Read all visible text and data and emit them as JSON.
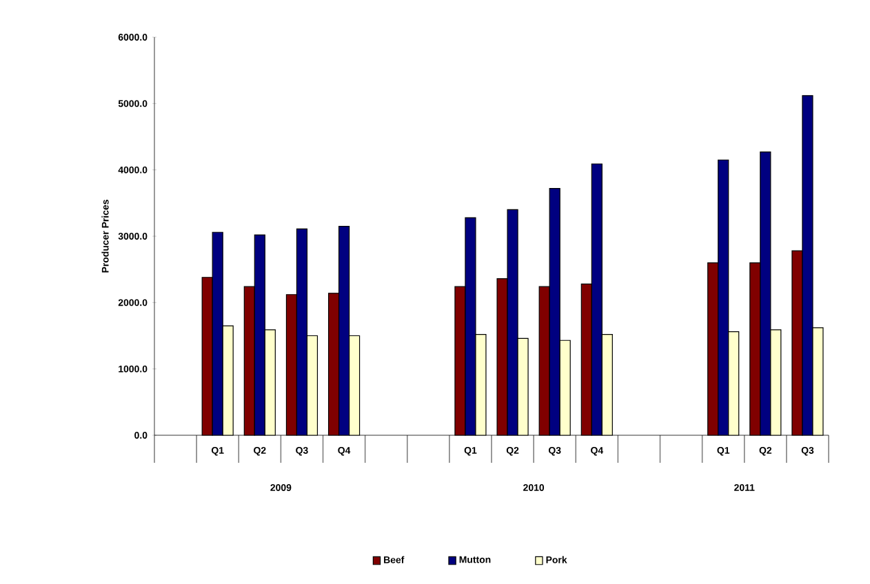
{
  "chart_data": {
    "type": "bar",
    "ylabel": "Producer Prices",
    "categories": [
      null,
      "Q1",
      "Q2",
      "Q3",
      "Q4",
      null,
      null,
      "Q1",
      "Q2",
      "Q3",
      "Q4",
      null,
      null,
      "Q1",
      "Q2",
      "Q3"
    ],
    "series": [
      {
        "name": "Beef",
        "color": "#800000",
        "values": [
          null,
          2380,
          2240,
          2120,
          2140,
          null,
          null,
          2240,
          2360,
          2240,
          2280,
          null,
          null,
          2600,
          2600,
          2780
        ]
      },
      {
        "name": "Mutton",
        "color": "#000080",
        "values": [
          null,
          3060,
          3020,
          3110,
          3150,
          null,
          null,
          3280,
          3400,
          3720,
          4090,
          null,
          null,
          4150,
          4270,
          5120
        ]
      },
      {
        "name": "Pork",
        "color": "#ffffcc",
        "values": [
          null,
          1650,
          1590,
          1500,
          1500,
          null,
          null,
          1520,
          1460,
          1430,
          1520,
          null,
          null,
          1560,
          1590,
          1620
        ]
      }
    ],
    "annotations": [
      "2009",
      "2010",
      "2011"
    ],
    "ylim": [
      0,
      6000
    ],
    "yticks": [
      {
        "value": 0,
        "label": "0.0"
      },
      {
        "value": 1000,
        "label": "1000.0"
      },
      {
        "value": 2000,
        "label": "2000.0"
      },
      {
        "value": 3000,
        "label": "3000.0"
      },
      {
        "value": 4000,
        "label": "4000.0"
      },
      {
        "value": 5000,
        "label": "5000.0"
      },
      {
        "value": 6000,
        "label": "6000.0"
      }
    ],
    "legend": "bottom",
    "grid": false
  }
}
